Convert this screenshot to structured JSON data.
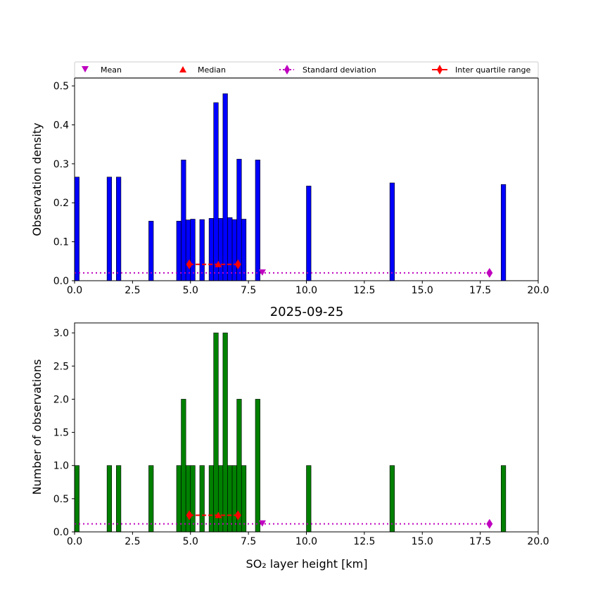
{
  "colors": {
    "density_bar": "#0000ff",
    "count_bar": "#008000",
    "bar_edge": "#000000",
    "mean": "#bf00bf",
    "median": "#ff0000",
    "std": "#bf00bf",
    "iqr": "#ff0000"
  },
  "legend": {
    "mean": "Mean",
    "median": "Median",
    "std": "Standard deviation",
    "iqr": "Inter quartile range"
  },
  "chart_data": [
    {
      "type": "bar",
      "title": "",
      "xlabel": "",
      "ylabel": "Observation density",
      "xlim": [
        0,
        20
      ],
      "ylim": [
        0,
        0.52
      ],
      "xticks": [
        "0.0",
        "2.5",
        "5.0",
        "7.5",
        "10.0",
        "12.5",
        "15.0",
        "17.5",
        "20.0"
      ],
      "yticks": [
        "0.0",
        "0.1",
        "0.2",
        "0.3",
        "0.4",
        "0.5"
      ],
      "bin_width": 0.2,
      "bins": [
        {
          "x": 0.0,
          "value": 0.266
        },
        {
          "x": 1.4,
          "value": 0.266
        },
        {
          "x": 1.8,
          "value": 0.266
        },
        {
          "x": 3.2,
          "value": 0.153
        },
        {
          "x": 4.4,
          "value": 0.153
        },
        {
          "x": 4.6,
          "value": 0.31
        },
        {
          "x": 4.8,
          "value": 0.156
        },
        {
          "x": 5.0,
          "value": 0.158
        },
        {
          "x": 5.4,
          "value": 0.157
        },
        {
          "x": 5.8,
          "value": 0.16
        },
        {
          "x": 6.0,
          "value": 0.457
        },
        {
          "x": 6.2,
          "value": 0.16
        },
        {
          "x": 6.4,
          "value": 0.48
        },
        {
          "x": 6.6,
          "value": 0.162
        },
        {
          "x": 6.8,
          "value": 0.157
        },
        {
          "x": 7.0,
          "value": 0.312
        },
        {
          "x": 7.2,
          "value": 0.158
        },
        {
          "x": 7.8,
          "value": 0.31
        },
        {
          "x": 10.0,
          "value": 0.243
        },
        {
          "x": 13.6,
          "value": 0.251
        },
        {
          "x": 18.4,
          "value": 0.247
        }
      ],
      "stats": {
        "y_level": 0.02,
        "iqr_y": 0.042,
        "mean": 8.1,
        "median": 6.2,
        "std_low": 0.0,
        "std_high": 17.9,
        "q1": 4.95,
        "q3": 7.05
      }
    },
    {
      "type": "bar",
      "title": "2025-09-25",
      "xlabel": "SO₂ layer height [km]",
      "ylabel": "Number of observations",
      "xlim": [
        0,
        20
      ],
      "ylim": [
        0,
        3.15
      ],
      "xticks": [
        "0.0",
        "2.5",
        "5.0",
        "7.5",
        "10.0",
        "12.5",
        "15.0",
        "17.5",
        "20.0"
      ],
      "yticks": [
        "0.0",
        "0.5",
        "1.0",
        "1.5",
        "2.0",
        "2.5",
        "3.0"
      ],
      "bin_width": 0.2,
      "bins": [
        {
          "x": 0.0,
          "value": 1
        },
        {
          "x": 1.4,
          "value": 1
        },
        {
          "x": 1.8,
          "value": 1
        },
        {
          "x": 3.2,
          "value": 1
        },
        {
          "x": 4.4,
          "value": 1
        },
        {
          "x": 4.6,
          "value": 2
        },
        {
          "x": 4.8,
          "value": 1
        },
        {
          "x": 5.0,
          "value": 1
        },
        {
          "x": 5.4,
          "value": 1
        },
        {
          "x": 5.8,
          "value": 1
        },
        {
          "x": 6.0,
          "value": 3
        },
        {
          "x": 6.2,
          "value": 1
        },
        {
          "x": 6.4,
          "value": 3
        },
        {
          "x": 6.6,
          "value": 1
        },
        {
          "x": 6.8,
          "value": 1
        },
        {
          "x": 7.0,
          "value": 2
        },
        {
          "x": 7.2,
          "value": 1
        },
        {
          "x": 7.8,
          "value": 2
        },
        {
          "x": 10.0,
          "value": 1
        },
        {
          "x": 13.6,
          "value": 1
        },
        {
          "x": 18.4,
          "value": 1
        }
      ],
      "stats": {
        "y_level": 0.12,
        "iqr_y": 0.25,
        "mean": 8.1,
        "median": 6.2,
        "std_low": 0.0,
        "std_high": 17.9,
        "q1": 4.95,
        "q3": 7.05
      }
    }
  ]
}
